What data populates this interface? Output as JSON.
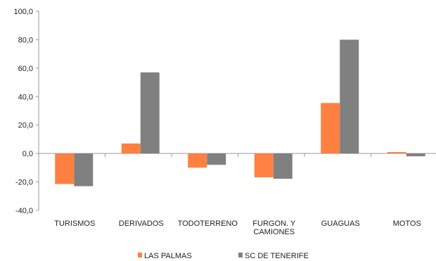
{
  "chart_data": {
    "type": "bar",
    "categories": [
      "TURISMOS",
      "DERIVADOS",
      "TODOTERRENO",
      "FURGON. Y CAMIONES",
      "GUAGUAS",
      "MOTOS"
    ],
    "category_lines": [
      [
        "TURISMOS"
      ],
      [
        "DERIVADOS"
      ],
      [
        "TODOTERRENO"
      ],
      [
        "FURGON. Y",
        "CAMIONES"
      ],
      [
        "GUAGUAS"
      ],
      [
        "MOTOS"
      ]
    ],
    "series": [
      {
        "name": "LAS PALMAS",
        "color": "#ff8040",
        "values": [
          -21.5,
          7.0,
          -10.0,
          -16.8,
          35.5,
          1.0
        ]
      },
      {
        "name": "SC DE TENERIFE",
        "color": "#808080",
        "values": [
          -23.0,
          57.0,
          -8.0,
          -17.8,
          80.0,
          -2.0
        ]
      }
    ],
    "ylim": [
      -40,
      100
    ],
    "yticks": [
      "100,0",
      "80,0",
      "60,0",
      "40,0",
      "20,0",
      "0,0",
      "-20,0",
      "-40,0"
    ],
    "ytick_values": [
      100,
      80,
      60,
      40,
      20,
      0,
      -20,
      -40
    ],
    "grid": false,
    "legend": "bottom",
    "title": "",
    "xlabel": "",
    "ylabel": ""
  }
}
